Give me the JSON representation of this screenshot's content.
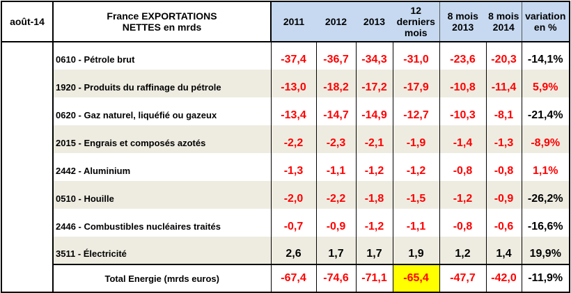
{
  "header": {
    "date": "août-14",
    "title": "France EXPORTATIONS NETTES en mrds",
    "columns": [
      "2011",
      "2012",
      "2013",
      "12 derniers mois",
      "8 mois 2013",
      "8 mois 2014",
      "variation en %"
    ]
  },
  "colors": {
    "negative": "#ff0000",
    "header_bg": "#c6d9f1",
    "stripe": "#eeece1",
    "highlight": "#ffff00"
  },
  "rows": [
    {
      "label": "0610 - Pétrole brut",
      "values": [
        "-37,4",
        "-36,7",
        "-34,3",
        "-31,0",
        "-23,6",
        "-20,3"
      ],
      "variation": "-14,1%",
      "var_red": false
    },
    {
      "label": "1920 - Produits du raffinage du pétrole",
      "values": [
        "-13,0",
        "-18,2",
        "-17,2",
        "-17,9",
        "-10,8",
        "-11,4"
      ],
      "variation": "5,9%",
      "var_red": true
    },
    {
      "label": "0620 - Gaz naturel, liquéfié ou gazeux",
      "values": [
        "-13,4",
        "-14,7",
        "-14,9",
        "-12,7",
        "-10,3",
        "-8,1"
      ],
      "variation": "-21,4%",
      "var_red": false
    },
    {
      "label": "2015 - Engrais et composés azotés",
      "values": [
        "-2,2",
        "-2,3",
        "-2,1",
        "-1,9",
        "-1,4",
        "-1,3"
      ],
      "variation": "-8,9%",
      "var_red": true
    },
    {
      "label": "2442 - Aluminium",
      "values": [
        "-1,3",
        "-1,1",
        "-1,2",
        "-1,2",
        "-0,8",
        "-0,8"
      ],
      "variation": "1,1%",
      "var_red": true
    },
    {
      "label": "0510 - Houille",
      "values": [
        "-2,0",
        "-2,2",
        "-1,8",
        "-1,5",
        "-1,2",
        "-0,9"
      ],
      "variation": "-26,2%",
      "var_red": false
    },
    {
      "label": "2446 - Combustibles nucléaires traités",
      "values": [
        "-0,7",
        "-0,9",
        "-1,2",
        "-1,1",
        "-0,8",
        "-0,6"
      ],
      "variation": "-16,6%",
      "var_red": false
    },
    {
      "label": "3511 - Électricité",
      "values": [
        "2,6",
        "1,7",
        "1,7",
        "1,9",
        "1,2",
        "1,4"
      ],
      "variation": "19,9%",
      "var_red": false
    }
  ],
  "total": {
    "label": "Total Energie (mrds euros)",
    "values": [
      "-67,4",
      "-74,6",
      "-71,1",
      "-65,4",
      "-47,7",
      "-42,0"
    ],
    "variation": "-11,9%",
    "highlighted_index": 3
  }
}
